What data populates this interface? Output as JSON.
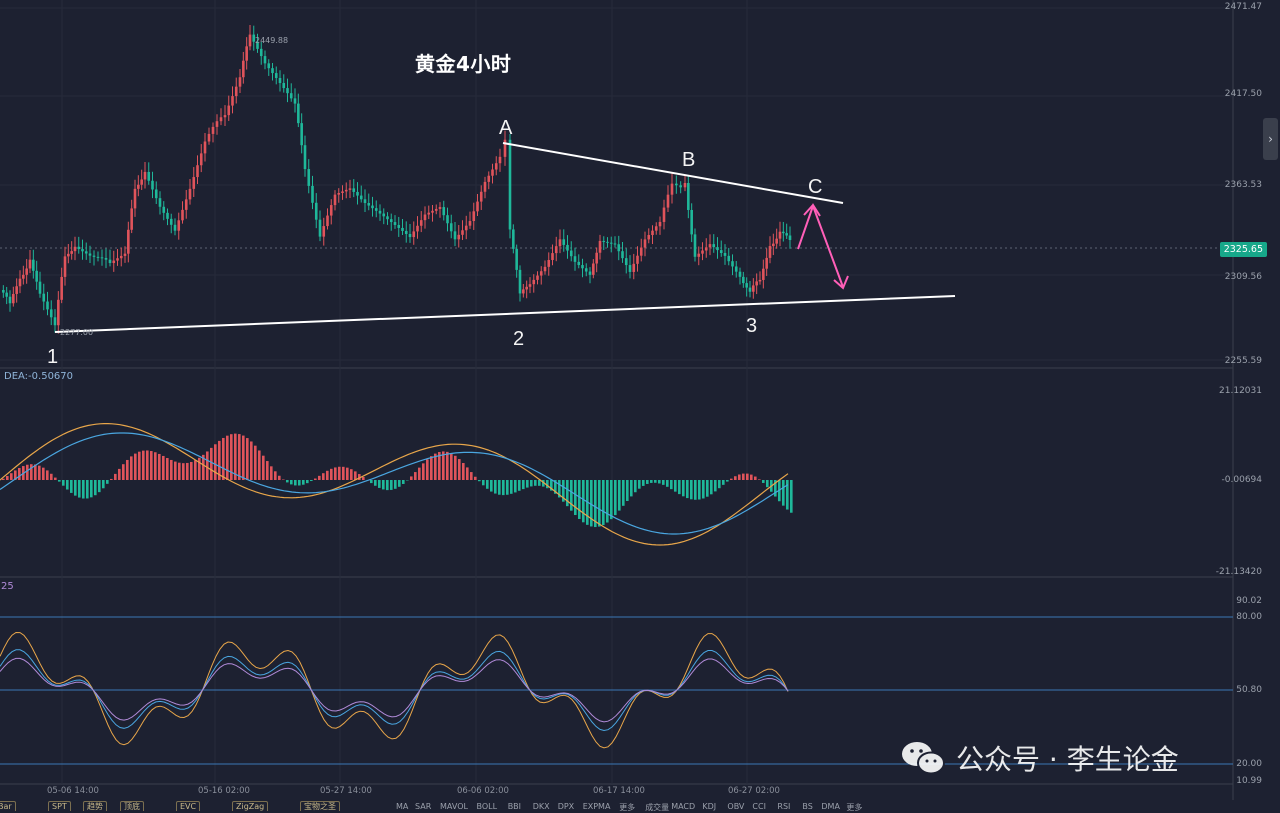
{
  "chart": {
    "title": "黄金4小时",
    "high_label": "2449.88",
    "low_label": "2277.00",
    "current_price": "2325.65"
  },
  "price_axis": [
    "2471.47",
    "2417.50",
    "2363.53",
    "2309.56",
    "2255.59"
  ],
  "macd_panel": {
    "label": "DEA:-0.50670",
    "axis": [
      "21.12031",
      "-0.00694",
      "-21.13420"
    ]
  },
  "rsi_panel": {
    "label": "25",
    "axis": [
      "90.02",
      "80.00",
      "50.80",
      "20.00",
      "10.99"
    ]
  },
  "time_axis": [
    "05-06 14:00",
    "05-16 02:00",
    "05-27 14:00",
    "06-06 02:00",
    "06-17 14:00",
    "06-27 02:00"
  ],
  "wave_labels": {
    "a": "A",
    "b": "B",
    "c": "C",
    "one": "1",
    "two": "2",
    "three": "3"
  },
  "indicator_tabs": [
    "Bar",
    "SPT",
    "趋势",
    "顶底",
    "EVC",
    "ZigZag",
    "宝物之圣"
  ],
  "indicator_names": [
    "MA",
    "SAR",
    "MAVOL",
    "BOLL",
    "BBI",
    "DKX",
    "DPX",
    "EXPMA",
    "更多",
    "成交量",
    "MACD",
    "KDJ",
    "OBV",
    "CCI",
    "RSI",
    "BS",
    "DMA",
    "更多"
  ],
  "watermark": "公众号 · 李生论金",
  "colors": {
    "background": "#1d2131",
    "up": "#e0545b",
    "down": "#1fb89a",
    "trendline": "#ffffff",
    "projection": "#ff5fb8",
    "macd_dif": "#e8a64a",
    "macd_dea": "#4aa6e0"
  }
}
